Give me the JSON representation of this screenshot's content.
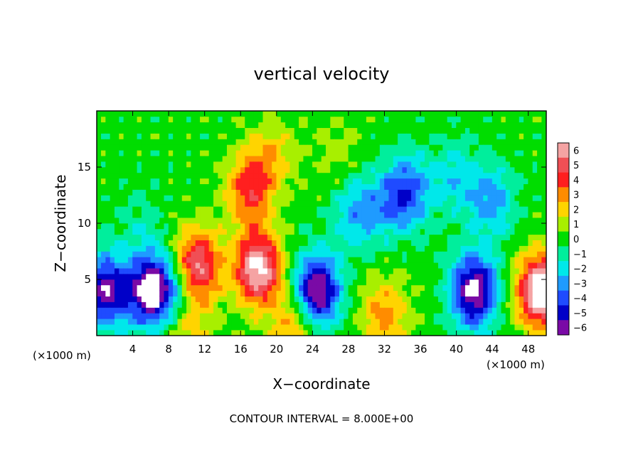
{
  "chart_data": {
    "type": "heatmap",
    "title": "vertical velocity",
    "xlabel": "X−coordinate",
    "ylabel": "Z−coordinate",
    "x_unit_left": "(×1000 m)",
    "x_unit_right": "(×1000 m)",
    "xlim": [
      0,
      50
    ],
    "ylim": [
      0,
      20
    ],
    "x_ticks": [
      "4",
      "8",
      "12",
      "16",
      "20",
      "24",
      "28",
      "32",
      "36",
      "40",
      "44",
      "48"
    ],
    "y_ticks": [
      "5",
      "10",
      "15"
    ],
    "colorbar_ticks": [
      "6",
      "5",
      "4",
      "3",
      "2",
      "1",
      "0",
      "−1",
      "−2",
      "−3",
      "−4",
      "−5",
      "−6"
    ],
    "value_range": [
      -6,
      6
    ],
    "contour_interval_label": "CONTOUR INTERVAL = 8.000E+00",
    "features": [
      {
        "x": 18,
        "z": 6,
        "w": 7
      },
      {
        "x": 17,
        "z": 13,
        "w": 4
      },
      {
        "x": 19.5,
        "z": 16,
        "w": 2
      },
      {
        "x": 27,
        "z": 16,
        "w": 1
      },
      {
        "x": 32,
        "z": 2,
        "w": 3
      },
      {
        "x": 22,
        "z": 1,
        "w": 3
      },
      {
        "x": 10,
        "z": 1.5,
        "w": 3
      },
      {
        "x": 11,
        "z": 6,
        "w": 7
      },
      {
        "x": 9.5,
        "z": 4,
        "w": -4
      },
      {
        "x": 1,
        "z": 4,
        "w": -6
      },
      {
        "x": 6,
        "z": 4,
        "w": -7
      },
      {
        "x": 24.5,
        "z": 4,
        "w": -7
      },
      {
        "x": 42,
        "z": 4,
        "w": -7
      },
      {
        "x": 49.5,
        "z": 4,
        "w": 8
      },
      {
        "x": 33,
        "z": 12,
        "w": -2.5
      },
      {
        "x": 35,
        "z": 13,
        "w": -3
      },
      {
        "x": 44,
        "z": 12,
        "w": -3
      },
      {
        "x": 29,
        "z": 11,
        "w": -3
      },
      {
        "x": 40,
        "z": 14,
        "w": -2
      },
      {
        "x": 5,
        "z": 10,
        "w": -1
      }
    ],
    "colors": {
      "6": "#f5a3a3",
      "5": "#f04f55",
      "4": "#ff1f1f",
      "3": "#ff8c00",
      "2": "#ffd400",
      "1": "#a8ef00",
      "0": "#00dd00",
      "-1": "#00ee9c",
      "-2": "#00e8ea",
      "-3": "#1f9bff",
      "-4": "#1f4bff",
      "-5": "#0000c8",
      "-6": "#7a0aa6"
    }
  }
}
